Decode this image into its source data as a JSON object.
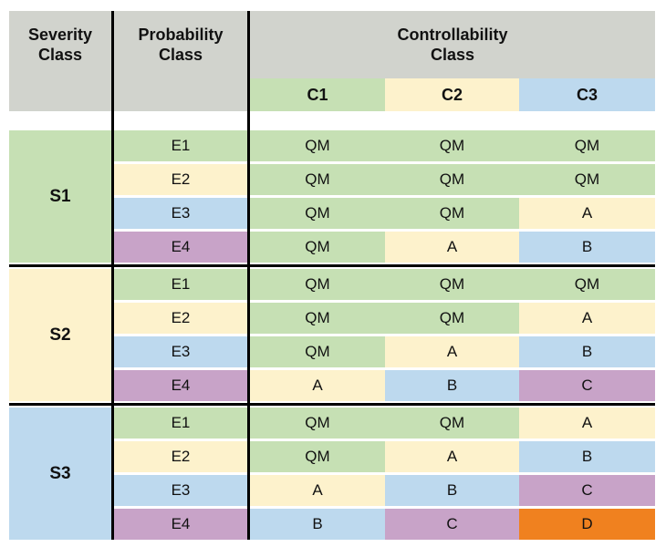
{
  "palette": {
    "gray": "#d1d3cd",
    "green": "#c6e0b4",
    "cream": "#fdf2cc",
    "blue": "#bdd9ee",
    "purple": "#c8a3c8",
    "orange": "#f0811f",
    "line": "#000000",
    "text": "#111111"
  },
  "chart_data": {
    "type": "table",
    "headers": {
      "severity": "Severity Class",
      "probability": "Probability Class",
      "controllability": "Controllability Class"
    },
    "controllability_levels": [
      "C1",
      "C2",
      "C3"
    ],
    "level_colors": [
      "green",
      "cream",
      "blue"
    ],
    "probability_levels": [
      "E1",
      "E2",
      "E3",
      "E4"
    ],
    "value_colors": {
      "QM": "green",
      "A": "cream",
      "B": "blue",
      "C": "purple",
      "D": "orange"
    },
    "groups": [
      {
        "severity": "S1",
        "color": "green",
        "rows": [
          {
            "probability": "E1",
            "color": "green",
            "values": [
              "QM",
              "QM",
              "QM"
            ]
          },
          {
            "probability": "E2",
            "color": "cream",
            "values": [
              "QM",
              "QM",
              "QM"
            ]
          },
          {
            "probability": "E3",
            "color": "blue",
            "values": [
              "QM",
              "QM",
              "A"
            ]
          },
          {
            "probability": "E4",
            "color": "purple",
            "values": [
              "QM",
              "A",
              "B"
            ]
          }
        ]
      },
      {
        "severity": "S2",
        "color": "cream",
        "rows": [
          {
            "probability": "E1",
            "color": "green",
            "values": [
              "QM",
              "QM",
              "QM"
            ]
          },
          {
            "probability": "E2",
            "color": "cream",
            "values": [
              "QM",
              "QM",
              "A"
            ]
          },
          {
            "probability": "E3",
            "color": "blue",
            "values": [
              "QM",
              "A",
              "B"
            ]
          },
          {
            "probability": "E4",
            "color": "purple",
            "values": [
              "A",
              "B",
              "C"
            ]
          }
        ]
      },
      {
        "severity": "S3",
        "color": "blue",
        "rows": [
          {
            "probability": "E1",
            "color": "green",
            "values": [
              "QM",
              "QM",
              "A"
            ]
          },
          {
            "probability": "E2",
            "color": "cream",
            "values": [
              "QM",
              "A",
              "B"
            ]
          },
          {
            "probability": "E3",
            "color": "blue",
            "values": [
              "A",
              "B",
              "C"
            ]
          },
          {
            "probability": "E4",
            "color": "purple",
            "values": [
              "B",
              "C",
              "D"
            ]
          }
        ]
      }
    ]
  }
}
